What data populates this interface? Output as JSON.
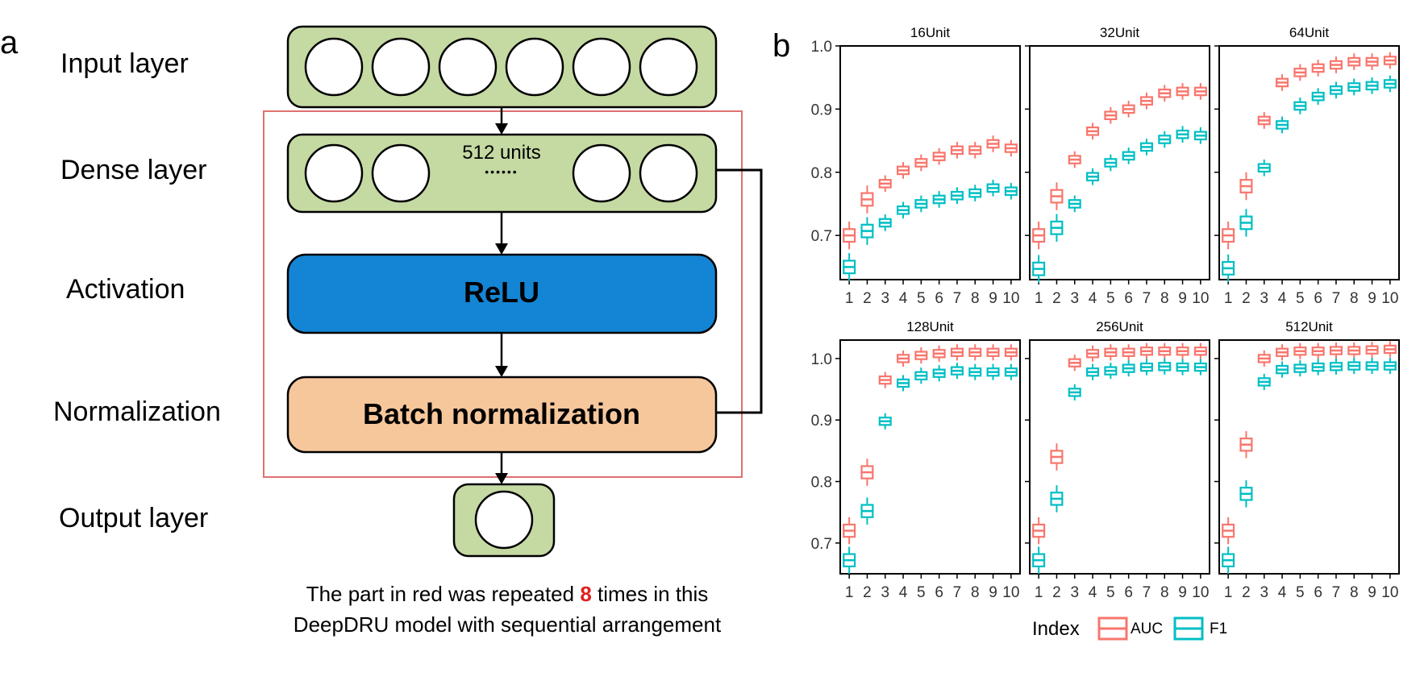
{
  "panel_a": {
    "letter": "a",
    "layer_labels": [
      "Input layer",
      "Dense layer",
      "Activation",
      "Normalization",
      "Output layer"
    ],
    "dense_units_label": "512 units",
    "dense_dots": "••••••",
    "relu_label": "ReLU",
    "batchnorm_label": "Batch normalization",
    "caption": {
      "line1_before": "The part in red was repeated ",
      "line1_highlight": "8",
      "line1_after": " times in this",
      "line2": "DeepDRU model with sequential arrangement"
    },
    "colors": {
      "layer_fill": "#c5d9a3",
      "relu_fill": "#1485d4",
      "batchnorm_fill": "#f7c79c",
      "repeat_frame": "#e07070",
      "highlight": "#e02020"
    }
  },
  "panel_b": {
    "letter": "b",
    "legend": {
      "title": "Index",
      "items": [
        "AUC",
        "F1"
      ]
    },
    "colors": {
      "AUC": "#f8766d",
      "F1": "#00bfc4"
    },
    "y_tick_labels_top": [
      "0.7",
      "0.8",
      "0.9",
      "1.0"
    ],
    "y_tick_labels_bottom": [
      "0.7",
      "0.8",
      "0.9",
      "1.0"
    ]
  },
  "chart_data": [
    {
      "type": "box",
      "title": "16Unit",
      "x": [
        1,
        2,
        3,
        4,
        5,
        6,
        7,
        8,
        9,
        10
      ],
      "ylim": [
        0.63,
        1.0
      ],
      "series": [
        {
          "name": "AUC",
          "values": [
            0.7,
            0.757,
            0.782,
            0.803,
            0.815,
            0.825,
            0.835,
            0.835,
            0.845,
            0.838
          ]
        },
        {
          "name": "F1",
          "values": [
            0.65,
            0.707,
            0.72,
            0.74,
            0.75,
            0.757,
            0.763,
            0.767,
            0.775,
            0.77
          ]
        }
      ]
    },
    {
      "type": "box",
      "title": "32Unit",
      "x": [
        1,
        2,
        3,
        4,
        5,
        6,
        7,
        8,
        9,
        10
      ],
      "ylim": [
        0.63,
        1.0
      ],
      "series": [
        {
          "name": "AUC",
          "values": [
            0.7,
            0.762,
            0.82,
            0.865,
            0.89,
            0.9,
            0.913,
            0.925,
            0.928,
            0.928
          ]
        },
        {
          "name": "F1",
          "values": [
            0.647,
            0.712,
            0.75,
            0.793,
            0.815,
            0.826,
            0.84,
            0.852,
            0.86,
            0.858
          ]
        }
      ]
    },
    {
      "type": "box",
      "title": "64Unit",
      "x": [
        1,
        2,
        3,
        4,
        5,
        6,
        7,
        8,
        9,
        10
      ],
      "ylim": [
        0.63,
        1.0
      ],
      "series": [
        {
          "name": "AUC",
          "values": [
            0.7,
            0.778,
            0.882,
            0.942,
            0.958,
            0.965,
            0.97,
            0.975,
            0.975,
            0.977
          ]
        },
        {
          "name": "F1",
          "values": [
            0.648,
            0.72,
            0.807,
            0.875,
            0.905,
            0.92,
            0.93,
            0.935,
            0.937,
            0.94
          ]
        }
      ]
    },
    {
      "type": "box",
      "title": "128Unit",
      "x": [
        1,
        2,
        3,
        4,
        5,
        6,
        7,
        8,
        9,
        10
      ],
      "ylim": [
        0.65,
        1.03
      ],
      "series": [
        {
          "name": "AUC",
          "values": [
            0.72,
            0.815,
            0.965,
            1.0,
            1.005,
            1.008,
            1.01,
            1.01,
            1.01,
            1.01
          ]
        },
        {
          "name": "F1",
          "values": [
            0.672,
            0.752,
            0.898,
            0.96,
            0.972,
            0.976,
            0.98,
            0.978,
            0.978,
            0.978
          ]
        }
      ]
    },
    {
      "type": "box",
      "title": "256Unit",
      "x": [
        1,
        2,
        3,
        4,
        5,
        6,
        7,
        8,
        9,
        10
      ],
      "ylim": [
        0.65,
        1.03
      ],
      "series": [
        {
          "name": "AUC",
          "values": [
            0.72,
            0.84,
            0.993,
            1.008,
            1.01,
            1.01,
            1.012,
            1.012,
            1.012,
            1.012
          ]
        },
        {
          "name": "F1",
          "values": [
            0.672,
            0.772,
            0.945,
            0.978,
            0.98,
            0.984,
            0.986,
            0.987,
            0.986,
            0.986
          ]
        }
      ]
    },
    {
      "type": "box",
      "title": "512Unit",
      "x": [
        1,
        2,
        3,
        4,
        5,
        6,
        7,
        8,
        9,
        10
      ],
      "ylim": [
        0.65,
        1.03
      ],
      "series": [
        {
          "name": "AUC",
          "values": [
            0.72,
            0.86,
            1.0,
            1.01,
            1.012,
            1.012,
            1.013,
            1.013,
            1.014,
            1.015
          ]
        },
        {
          "name": "F1",
          "values": [
            0.672,
            0.78,
            0.962,
            0.982,
            0.984,
            0.986,
            0.987,
            0.988,
            0.988,
            0.988
          ]
        }
      ]
    }
  ]
}
